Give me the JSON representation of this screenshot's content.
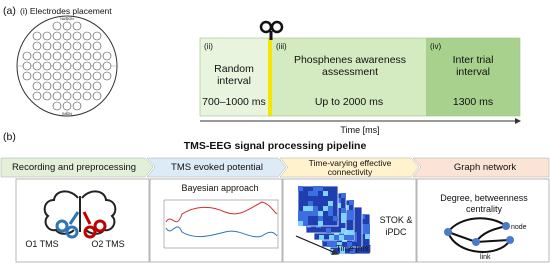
{
  "panel_a": {
    "label": "(a)",
    "electrodes_title": "(i) Electrodes placement",
    "nasion": "NASION",
    "inion": "INION",
    "phases": [
      {
        "id": "(ii)",
        "title": "Random interval",
        "duration": "700–1000 ms"
      },
      {
        "id": "(iii)",
        "title": "Phosphenes awareness assessment",
        "duration": "Up to 2000 ms"
      },
      {
        "id": "(iv)",
        "title": "Inter trial interval",
        "duration": "1300 ms"
      }
    ],
    "axis_label": "Time [ms]"
  },
  "panel_b": {
    "label": "(b)",
    "title": "TMS-EEG signal processing pipeline",
    "stages": [
      {
        "header": "Recording and preprocessing",
        "left_label": "O1 TMS",
        "right_label": "O2 TMS"
      },
      {
        "header": "TMS evoked potential",
        "caption": "Bayesian approach"
      },
      {
        "header": "Time-varying effective connectivity",
        "caption": "STOK & iPDC",
        "axis_label": "Time [ms]"
      },
      {
        "header": "Graph network",
        "caption": "Degree, betweenness centrality",
        "node_label": "node",
        "link_label": "link"
      }
    ]
  }
}
